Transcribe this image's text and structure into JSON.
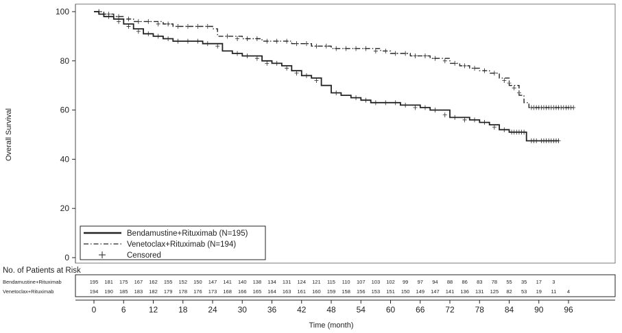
{
  "chart_data": {
    "type": "line",
    "ylabel": "Overall Survival",
    "xlabel": "Time (month)",
    "xlim": [
      0,
      96
    ],
    "ylim": [
      0,
      100
    ],
    "x_ticks": [
      0,
      6,
      12,
      18,
      24,
      30,
      36,
      42,
      48,
      54,
      60,
      66,
      72,
      78,
      84,
      90,
      96
    ],
    "y_ticks": [
      0,
      20,
      40,
      60,
      80,
      100
    ],
    "grid": false,
    "legend_position": "bottom-left",
    "legend": [
      {
        "label": "Bendamustine+Rituximab (N=195)",
        "style": "solid"
      },
      {
        "label": "Venetoclax+Rituximab (N=194)",
        "style": "dash-dot"
      },
      {
        "label": "Censored",
        "style": "plus-marker"
      }
    ],
    "series": [
      {
        "name": "Bendamustine+Rituximab (N=195)",
        "style": "solid",
        "points": [
          [
            0,
            100
          ],
          [
            1,
            99
          ],
          [
            2,
            98
          ],
          [
            4,
            97
          ],
          [
            6,
            95
          ],
          [
            8,
            93
          ],
          [
            10,
            91
          ],
          [
            12,
            90
          ],
          [
            14,
            89
          ],
          [
            16,
            88
          ],
          [
            20,
            88
          ],
          [
            22,
            87
          ],
          [
            24,
            87
          ],
          [
            26,
            84
          ],
          [
            28,
            83
          ],
          [
            30,
            82
          ],
          [
            32,
            82
          ],
          [
            34,
            80
          ],
          [
            36,
            79
          ],
          [
            38,
            78
          ],
          [
            40,
            76
          ],
          [
            42,
            74
          ],
          [
            44,
            73
          ],
          [
            46,
            70
          ],
          [
            48,
            67
          ],
          [
            50,
            66
          ],
          [
            52,
            65
          ],
          [
            54,
            64
          ],
          [
            56,
            63
          ],
          [
            60,
            63
          ],
          [
            62,
            62
          ],
          [
            66,
            61
          ],
          [
            68,
            60
          ],
          [
            72,
            57
          ],
          [
            76,
            56
          ],
          [
            78,
            55
          ],
          [
            80,
            54
          ],
          [
            82,
            52
          ],
          [
            84,
            51
          ],
          [
            86,
            51
          ],
          [
            87.5,
            51
          ],
          [
            87.5,
            47.5
          ],
          [
            90,
            47.5
          ],
          [
            94,
            47.5
          ]
        ],
        "censored": [
          [
            1,
            100
          ],
          [
            2,
            99
          ],
          [
            3,
            98
          ],
          [
            5,
            96
          ],
          [
            7,
            94
          ],
          [
            9,
            92
          ],
          [
            11,
            91
          ],
          [
            13,
            90
          ],
          [
            15,
            89
          ],
          [
            17,
            88
          ],
          [
            19,
            88
          ],
          [
            21,
            88
          ],
          [
            23,
            87
          ],
          [
            25,
            86
          ],
          [
            29,
            83
          ],
          [
            31,
            82
          ],
          [
            33,
            81
          ],
          [
            35,
            79
          ],
          [
            37,
            79
          ],
          [
            39,
            77
          ],
          [
            41,
            75
          ],
          [
            43,
            74
          ],
          [
            45,
            72
          ],
          [
            49,
            67
          ],
          [
            53,
            65
          ],
          [
            55,
            64
          ],
          [
            57,
            63
          ],
          [
            59,
            63
          ],
          [
            61,
            63
          ],
          [
            63,
            62
          ],
          [
            65,
            61
          ],
          [
            67,
            61
          ],
          [
            69,
            60
          ],
          [
            71,
            58
          ],
          [
            73,
            57
          ],
          [
            75,
            56
          ],
          [
            77,
            56
          ],
          [
            79,
            55
          ],
          [
            81,
            53
          ],
          [
            83,
            52
          ],
          [
            84.5,
            51
          ],
          [
            85,
            51
          ],
          [
            85.5,
            51
          ],
          [
            86,
            51
          ],
          [
            86.5,
            51
          ],
          [
            87,
            51
          ],
          [
            88.5,
            47.5
          ],
          [
            89,
            47.5
          ],
          [
            89.5,
            47.5
          ],
          [
            90.5,
            47.5
          ],
          [
            91,
            47.5
          ],
          [
            91.5,
            47.5
          ],
          [
            92,
            47.5
          ],
          [
            92.5,
            47.5
          ],
          [
            93,
            47.5
          ],
          [
            93.5,
            47.5
          ],
          [
            94,
            47.5
          ]
        ]
      },
      {
        "name": "Venetoclax+Rituximab (N=194)",
        "style": "dash-dot",
        "points": [
          [
            0,
            100
          ],
          [
            2,
            99
          ],
          [
            4,
            98
          ],
          [
            6,
            97
          ],
          [
            8,
            96
          ],
          [
            10,
            96
          ],
          [
            12,
            96
          ],
          [
            14,
            95
          ],
          [
            16,
            94
          ],
          [
            18,
            94
          ],
          [
            22,
            94
          ],
          [
            24,
            93
          ],
          [
            25,
            90
          ],
          [
            26,
            90
          ],
          [
            30,
            89
          ],
          [
            32,
            89
          ],
          [
            34,
            88
          ],
          [
            38,
            88
          ],
          [
            40,
            87
          ],
          [
            42,
            87
          ],
          [
            44,
            86
          ],
          [
            46,
            86
          ],
          [
            48,
            85
          ],
          [
            50,
            85
          ],
          [
            54,
            85
          ],
          [
            58,
            84
          ],
          [
            60,
            83
          ],
          [
            62,
            83
          ],
          [
            64,
            82
          ],
          [
            66,
            82
          ],
          [
            68,
            81
          ],
          [
            70,
            81
          ],
          [
            72,
            79
          ],
          [
            74,
            78
          ],
          [
            76,
            77
          ],
          [
            78,
            76
          ],
          [
            80,
            75
          ],
          [
            82,
            73
          ],
          [
            84,
            70
          ],
          [
            86,
            66
          ],
          [
            87,
            63
          ],
          [
            88,
            61
          ],
          [
            90,
            61
          ],
          [
            97,
            61
          ]
        ],
        "censored": [
          [
            1,
            100
          ],
          [
            3,
            99
          ],
          [
            5,
            98
          ],
          [
            7,
            97
          ],
          [
            9,
            96
          ],
          [
            11,
            96
          ],
          [
            13,
            95
          ],
          [
            15,
            95
          ],
          [
            17,
            94
          ],
          [
            19,
            94
          ],
          [
            21,
            94
          ],
          [
            23,
            94
          ],
          [
            27,
            90
          ],
          [
            29,
            89
          ],
          [
            31,
            89
          ],
          [
            33,
            89
          ],
          [
            35,
            88
          ],
          [
            37,
            88
          ],
          [
            39,
            88
          ],
          [
            41,
            87
          ],
          [
            43,
            87
          ],
          [
            45,
            86
          ],
          [
            47,
            86
          ],
          [
            49,
            85
          ],
          [
            51,
            85
          ],
          [
            53,
            85
          ],
          [
            55,
            85
          ],
          [
            57,
            84
          ],
          [
            59,
            84
          ],
          [
            61,
            83
          ],
          [
            63,
            83
          ],
          [
            65,
            82
          ],
          [
            67,
            82
          ],
          [
            69,
            81
          ],
          [
            71,
            80
          ],
          [
            73,
            79
          ],
          [
            75,
            78
          ],
          [
            77,
            77
          ],
          [
            79,
            76
          ],
          [
            81,
            75
          ],
          [
            83,
            72
          ],
          [
            84,
            71
          ],
          [
            85,
            69
          ],
          [
            86,
            67
          ],
          [
            88.5,
            61
          ],
          [
            89,
            61
          ],
          [
            89.5,
            61
          ],
          [
            90,
            61
          ],
          [
            90.5,
            61
          ],
          [
            91,
            61
          ],
          [
            91.5,
            61
          ],
          [
            92,
            61
          ],
          [
            92.5,
            61
          ],
          [
            93,
            61
          ],
          [
            93.5,
            61
          ],
          [
            94,
            61
          ],
          [
            94.5,
            61
          ],
          [
            95,
            61
          ],
          [
            95.5,
            61
          ],
          [
            96,
            61
          ],
          [
            96.5,
            61
          ],
          [
            97,
            61
          ]
        ]
      }
    ],
    "risk_table": {
      "title": "No. of Patients at Risk",
      "times": [
        0,
        3,
        6,
        9,
        12,
        15,
        18,
        21,
        24,
        27,
        30,
        33,
        36,
        39,
        42,
        45,
        48,
        51,
        54,
        57,
        60,
        63,
        66,
        69,
        72,
        75,
        78,
        81,
        84,
        87,
        90,
        93,
        96
      ],
      "rows": [
        {
          "label": "Bendamustine+Rituximab",
          "counts": [
            "195",
            "181",
            "175",
            "167",
            "162",
            "155",
            "152",
            "150",
            "147",
            "141",
            "140",
            "138",
            "134",
            "131",
            "124",
            "121",
            "115",
            "110",
            "107",
            "103",
            "102",
            "99",
            "97",
            "94",
            "88",
            "86",
            "83",
            "78",
            "55",
            "35",
            "17",
            "3",
            ""
          ]
        },
        {
          "label": "Venetoclax+Rituximab",
          "counts": [
            "194",
            "190",
            "185",
            "183",
            "182",
            "179",
            "178",
            "176",
            "173",
            "168",
            "166",
            "165",
            "164",
            "163",
            "161",
            "160",
            "159",
            "158",
            "156",
            "153",
            "151",
            "150",
            "149",
            "147",
            "141",
            "136",
            "131",
            "125",
            "82",
            "53",
            "19",
            "11",
            "4"
          ]
        }
      ]
    }
  }
}
